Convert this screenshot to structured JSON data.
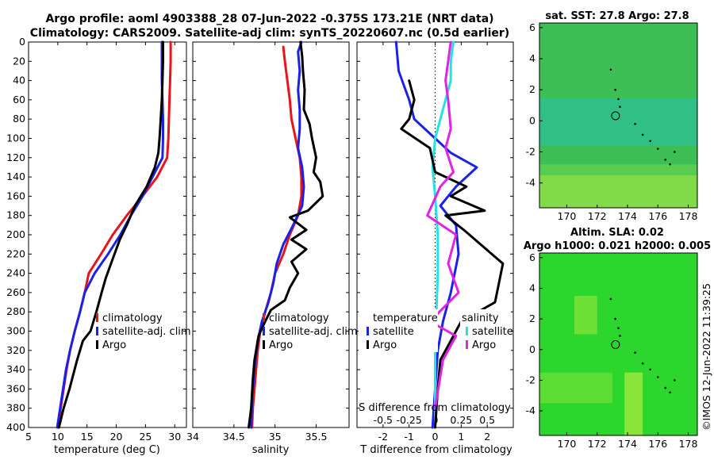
{
  "titles": {
    "line1": "Argo profile: aoml 4903388_28 07-Jun-2022 -0.375S 173.21E (NRT data)",
    "line2": "Climatology: CARS2009. Satellite-adj clim: synTS_20220607.nc (0.5d earlier)"
  },
  "colors": {
    "climatology": "#e8141a",
    "satellite": "#1a22e8",
    "argo": "#000000",
    "temp_diff_sat": "#1a22e8",
    "sal_diff_sat": "#22e2e8",
    "temp_diff_argo": "#000000",
    "sal_diff_argo": "#e024e0"
  },
  "chart_data": [
    {
      "id": "temperature",
      "type": "line",
      "xlabel": "temperature (deg C)",
      "ylabel": "depth",
      "xlim": [
        5,
        32
      ],
      "ylim": [
        400,
        0
      ],
      "xticks": [
        5,
        10,
        15,
        20,
        25,
        30
      ],
      "yticks": [
        0,
        20,
        40,
        60,
        80,
        100,
        120,
        140,
        160,
        180,
        200,
        220,
        240,
        260,
        280,
        300,
        320,
        340,
        360,
        380,
        400
      ],
      "legend": [
        "climatology",
        "satellite-adj. clim",
        "Argo"
      ],
      "legend_position": "lower-right",
      "series": [
        {
          "name": "climatology",
          "color": "climatology",
          "points": [
            [
              29.3,
              0
            ],
            [
              29.3,
              20
            ],
            [
              29.2,
              40
            ],
            [
              29.1,
              60
            ],
            [
              29.0,
              80
            ],
            [
              28.9,
              100
            ],
            [
              28.7,
              120
            ],
            [
              27.0,
              140
            ],
            [
              24.5,
              160
            ],
            [
              21.8,
              180
            ],
            [
              19.4,
              200
            ],
            [
              17.4,
              220
            ],
            [
              15.3,
              240
            ],
            [
              14.6,
              260
            ],
            [
              13.8,
              280
            ],
            [
              12.9,
              300
            ],
            [
              12.1,
              320
            ],
            [
              11.5,
              340
            ],
            [
              11.0,
              360
            ],
            [
              10.5,
              380
            ],
            [
              10.1,
              400
            ]
          ]
        },
        {
          "name": "satellite-adj. clim",
          "color": "satellite",
          "points": [
            [
              27.8,
              0
            ],
            [
              27.8,
              20
            ],
            [
              27.8,
              40
            ],
            [
              27.9,
              60
            ],
            [
              28.0,
              80
            ],
            [
              28.0,
              100
            ],
            [
              27.9,
              120
            ],
            [
              26.2,
              140
            ],
            [
              24.5,
              160
            ],
            [
              22.5,
              180
            ],
            [
              20.7,
              200
            ],
            [
              18.6,
              220
            ],
            [
              16.3,
              240
            ],
            [
              14.6,
              260
            ],
            [
              13.8,
              280
            ],
            [
              12.9,
              300
            ],
            [
              12.1,
              320
            ],
            [
              11.4,
              340
            ],
            [
              10.9,
              360
            ],
            [
              10.4,
              380
            ],
            [
              9.9,
              400
            ]
          ]
        },
        {
          "name": "Argo",
          "color": "argo",
          "points": [
            [
              28.0,
              0
            ],
            [
              28.0,
              20
            ],
            [
              27.9,
              40
            ],
            [
              27.8,
              60
            ],
            [
              27.6,
              80
            ],
            [
              27.4,
              100
            ],
            [
              27.2,
              115
            ],
            [
              26.6,
              130
            ],
            [
              25.2,
              150
            ],
            [
              23.2,
              170
            ],
            [
              21.8,
              190
            ],
            [
              20.6,
              205
            ],
            [
              19.4,
              225
            ],
            [
              18.2,
              245
            ],
            [
              17.5,
              260
            ],
            [
              16.6,
              280
            ],
            [
              15.6,
              300
            ],
            [
              14.3,
              310
            ],
            [
              13.3,
              330
            ],
            [
              12.0,
              360
            ],
            [
              11.0,
              380
            ],
            [
              10.2,
              400
            ]
          ]
        }
      ]
    },
    {
      "id": "salinity",
      "type": "line",
      "xlabel": "salinity",
      "ylabel": "depth",
      "xlim": [
        34.0,
        35.9
      ],
      "ylim": [
        400,
        0
      ],
      "xticks": [
        34,
        34.5,
        35,
        35.5
      ],
      "legend": [
        "climatology",
        "satellite-adj. clim",
        "Argo"
      ],
      "legend_position": "lower-right",
      "series": [
        {
          "name": "climatology",
          "color": "climatology",
          "points": [
            [
              35.1,
              5
            ],
            [
              35.12,
              20
            ],
            [
              35.15,
              40
            ],
            [
              35.18,
              60
            ],
            [
              35.2,
              80
            ],
            [
              35.25,
              100
            ],
            [
              35.3,
              120
            ],
            [
              35.32,
              140
            ],
            [
              35.32,
              160
            ],
            [
              35.28,
              180
            ],
            [
              35.18,
              200
            ],
            [
              35.1,
              220
            ],
            [
              35.0,
              240
            ],
            [
              34.95,
              260
            ],
            [
              34.88,
              280
            ],
            [
              34.82,
              300
            ],
            [
              34.79,
              320
            ],
            [
              34.77,
              340
            ],
            [
              34.75,
              360
            ],
            [
              34.73,
              380
            ],
            [
              34.72,
              400
            ]
          ]
        },
        {
          "name": "satellite-adj. clim",
          "color": "satellite",
          "points": [
            [
              35.32,
              0
            ],
            [
              35.28,
              10
            ],
            [
              35.3,
              30
            ],
            [
              35.28,
              50
            ],
            [
              35.3,
              70
            ],
            [
              35.3,
              90
            ],
            [
              35.28,
              110
            ],
            [
              35.33,
              130
            ],
            [
              35.35,
              150
            ],
            [
              35.33,
              170
            ],
            [
              35.22,
              190
            ],
            [
              35.1,
              210
            ],
            [
              35.02,
              230
            ],
            [
              34.98,
              250
            ],
            [
              34.92,
              270
            ],
            [
              34.84,
              290
            ],
            [
              34.79,
              310
            ],
            [
              34.76,
              330
            ],
            [
              34.74,
              350
            ],
            [
              34.72,
              370
            ],
            [
              34.71,
              400
            ]
          ]
        },
        {
          "name": "Argo",
          "color": "argo",
          "points": [
            [
              35.31,
              0
            ],
            [
              35.33,
              15
            ],
            [
              35.34,
              30
            ],
            [
              35.36,
              50
            ],
            [
              35.35,
              70
            ],
            [
              35.42,
              85
            ],
            [
              35.45,
              100
            ],
            [
              35.5,
              120
            ],
            [
              35.47,
              135
            ],
            [
              35.55,
              145
            ],
            [
              35.58,
              160
            ],
            [
              35.4,
              175
            ],
            [
              35.18,
              182
            ],
            [
              35.38,
              195
            ],
            [
              35.2,
              205
            ],
            [
              35.38,
              215
            ],
            [
              35.2,
              228
            ],
            [
              35.28,
              240
            ],
            [
              35.18,
              255
            ],
            [
              35.12,
              268
            ],
            [
              34.95,
              278
            ],
            [
              34.88,
              290
            ],
            [
              34.8,
              305
            ],
            [
              34.75,
              330
            ],
            [
              34.73,
              350
            ],
            [
              34.71,
              380
            ],
            [
              34.68,
              400
            ]
          ]
        }
      ]
    },
    {
      "id": "difference",
      "type": "line",
      "xlabel": "T difference from climatology",
      "x2label": "S difference from climatology",
      "ylabel": "depth",
      "xlim": [
        -3,
        3
      ],
      "ylim": [
        400,
        0
      ],
      "xticks": [
        -2,
        -1,
        0,
        1,
        2
      ],
      "x2ticks": [
        "-0.5",
        "-0.25",
        "0",
        "0.25",
        "0.5"
      ],
      "legend_left": {
        "title": "temperature",
        "items": [
          "satellite",
          "Argo"
        ]
      },
      "legend_right": {
        "title": "salinity",
        "items": [
          "satellite",
          "Argo"
        ]
      },
      "series": [
        {
          "name": "temperature satellite",
          "color": "temp_diff_sat",
          "points": [
            [
              -1.5,
              0
            ],
            [
              -1.4,
              30
            ],
            [
              -1.0,
              60
            ],
            [
              -0.8,
              80
            ],
            [
              0.0,
              100
            ],
            [
              0.6,
              115
            ],
            [
              1.6,
              130
            ],
            [
              0.8,
              150
            ],
            [
              0.2,
              170
            ],
            [
              0.8,
              190
            ],
            [
              0.9,
              220
            ],
            [
              0.6,
              260
            ],
            [
              0.3,
              290
            ],
            [
              0.1,
              320
            ],
            [
              0.0,
              360
            ],
            [
              -0.1,
              400
            ]
          ]
        },
        {
          "name": "salinity satellite",
          "color": "sal_diff_sat",
          "points": [
            [
              0.7,
              0
            ],
            [
              0.6,
              20
            ],
            [
              0.6,
              40
            ],
            [
              0.4,
              60
            ],
            [
              0.2,
              80
            ],
            [
              0.0,
              100
            ],
            [
              -0.1,
              130
            ],
            [
              0.0,
              160
            ],
            [
              0.1,
              200
            ],
            [
              0.1,
              240
            ],
            [
              0.05,
              280
            ],
            [
              0.0,
              320
            ],
            [
              0.0,
              360
            ],
            [
              0.0,
              400
            ]
          ]
        },
        {
          "name": "temperature Argo",
          "color": "temp_diff_argo",
          "points": [
            [
              -1.0,
              40
            ],
            [
              -0.8,
              60
            ],
            [
              -1.0,
              80
            ],
            [
              -1.3,
              90
            ],
            [
              -0.2,
              110
            ],
            [
              0.0,
              135
            ],
            [
              1.2,
              150
            ],
            [
              0.6,
              160
            ],
            [
              1.9,
              175
            ],
            [
              0.4,
              180
            ],
            [
              1.1,
              195
            ],
            [
              2.6,
              230
            ],
            [
              2.3,
              270
            ],
            [
              1.0,
              290
            ],
            [
              0.6,
              310
            ],
            [
              0.2,
              330
            ],
            [
              0.1,
              360
            ],
            [
              0.0,
              400
            ]
          ]
        },
        {
          "name": "salinity Argo",
          "color": "sal_diff_argo",
          "points": [
            [
              0.6,
              0
            ],
            [
              0.5,
              20
            ],
            [
              0.4,
              40
            ],
            [
              0.5,
              60
            ],
            [
              0.6,
              90
            ],
            [
              0.4,
              110
            ],
            [
              0.7,
              135
            ],
            [
              0.2,
              150
            ],
            [
              -0.3,
              180
            ],
            [
              0.8,
              200
            ],
            [
              0.5,
              230
            ],
            [
              0.9,
              260
            ],
            [
              -0.2,
              290
            ],
            [
              0.8,
              305
            ],
            [
              0.3,
              330
            ],
            [
              0.0,
              380
            ]
          ]
        }
      ]
    }
  ],
  "maps": [
    {
      "id": "sst-map",
      "title": "sat. SST: 27.8 Argo: 27.8",
      "xticks": [
        "170",
        "172",
        "174",
        "176",
        "178"
      ],
      "yticks": [
        "6",
        "4",
        "2",
        "0",
        "-2",
        "-4"
      ],
      "color_top": "#3dbf55",
      "color_mid": "#2fc08c",
      "color_bottom": "#9ee646"
    },
    {
      "id": "sla-map",
      "title_line1": "Altim. SLA: 0.02",
      "title_line2": "Argo h1000: 0.021 h2000: 0.005",
      "xticks": [
        "170",
        "172",
        "174",
        "176",
        "178"
      ],
      "yticks": [
        "6",
        "4",
        "2",
        "0",
        "-2",
        "-4"
      ],
      "color_main": "#2dd62d",
      "color_light": "#8ae43a"
    }
  ],
  "copyright": "©IMOS 12-Jun-2022 11:39:25"
}
